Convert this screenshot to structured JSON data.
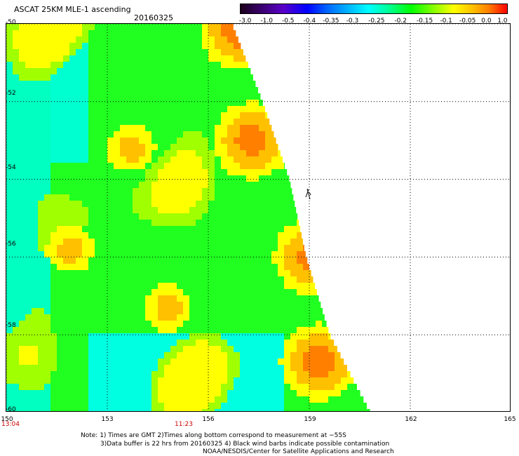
{
  "header": {
    "title": "ASCAT 25KM MLE-1 ascending",
    "date": "20160325"
  },
  "colorbar": {
    "labels": [
      "-3.0",
      "-1.0",
      "-0.5",
      "-0.4",
      "-0.35",
      "-0.3",
      "-0.25",
      "-0.2",
      "-0.15",
      "-0.1",
      "-0.05",
      "0.0",
      "1.0"
    ],
    "colors": [
      "#1a001a",
      "#3a0070",
      "#5a00c8",
      "#0000ff",
      "#0060ff",
      "#00b0ff",
      "#00ffff",
      "#00ff90",
      "#00ff00",
      "#80ff00",
      "#ffff00",
      "#ffc000",
      "#ff8000",
      "#ff0000"
    ]
  },
  "map": {
    "lat_labels": [
      "-50",
      "-52",
      "-54",
      "-56",
      "-58",
      "-60"
    ],
    "lon_labels": [
      "150",
      "153",
      "156",
      "159",
      "162",
      "165"
    ],
    "time_labels": [
      "13:04",
      "11:23"
    ],
    "lon_range": [
      150,
      165
    ],
    "lat_range": [
      -50,
      -60
    ],
    "swath_edge": [
      [
        -50,
        156.7
      ],
      [
        -52,
        157.6
      ],
      [
        -54,
        158.4
      ],
      [
        -56,
        158.9
      ],
      [
        -58,
        159.6
      ],
      [
        -60,
        160.8
      ]
    ],
    "hotspots": [
      {
        "lon": 157.3,
        "lat": -53.0,
        "level": "orange"
      },
      {
        "lon": 159.3,
        "lat": -58.7,
        "level": "orange"
      },
      {
        "lon": 156.9,
        "lat": -50.2,
        "level": "orange"
      },
      {
        "lon": 159.1,
        "lat": -56.0,
        "level": "orange"
      },
      {
        "lon": 153.7,
        "lat": -53.2,
        "level": "yellow"
      },
      {
        "lon": 151.9,
        "lat": -55.8,
        "level": "yellow"
      },
      {
        "lon": 154.8,
        "lat": -57.3,
        "level": "yellow"
      }
    ]
  },
  "footer": {
    "note1": "Note: 1) Times are GMT 2)Times along bottom correspond to measurement at −55S",
    "note2": "3)Data buffer is 22 hrs from 20160325 4) Black wind barbs indicate possible contamination",
    "note3": "NOAA/NESDIS/Center for Satellite Applications and Research"
  }
}
